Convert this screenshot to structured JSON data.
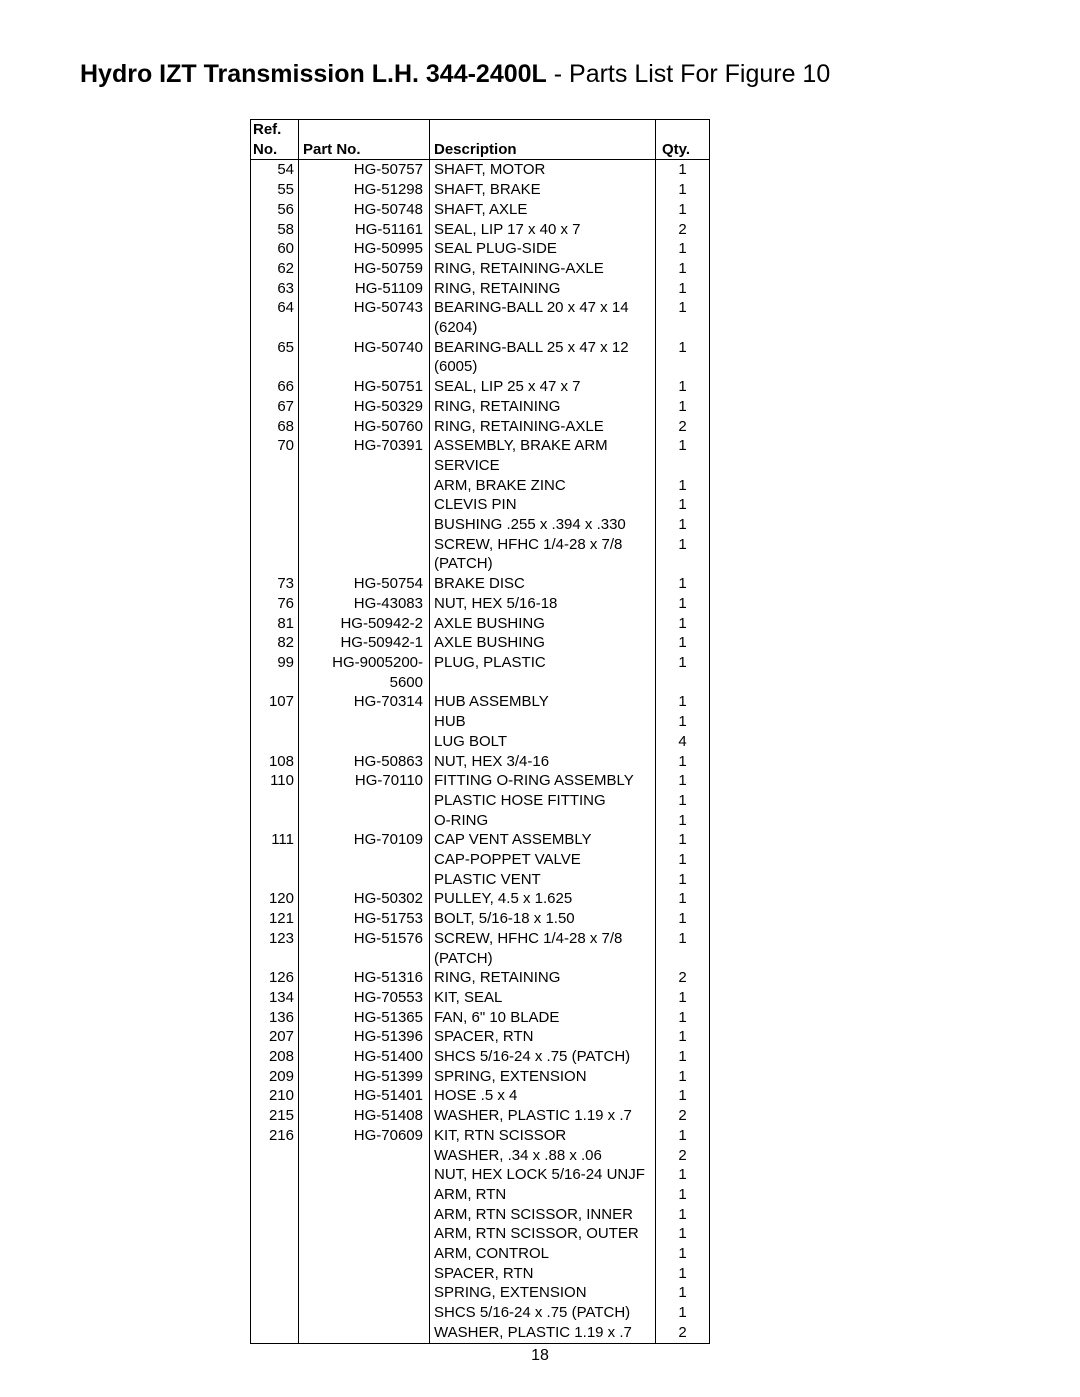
{
  "title": {
    "bold_part": "Hydro IZT Transmission L.H. 344-2400L",
    "rest": " - Parts List For Figure 10"
  },
  "headers": {
    "ref_line1": "Ref.",
    "ref_line2": "No.",
    "part": "Part No.",
    "desc": "Description",
    "qty": "Qty."
  },
  "rows": [
    {
      "ref": "54",
      "part": "HG-50757",
      "desc": "SHAFT, MOTOR",
      "qty": "1"
    },
    {
      "ref": "55",
      "part": "HG-51298",
      "desc": "SHAFT, BRAKE",
      "qty": "1"
    },
    {
      "ref": "56",
      "part": "HG-50748",
      "desc": "SHAFT, AXLE",
      "qty": "1"
    },
    {
      "ref": "58",
      "part": "HG-51161",
      "desc": "SEAL, LIP 17 x 40 x 7",
      "qty": "2"
    },
    {
      "ref": "60",
      "part": "HG-50995",
      "desc": "SEAL PLUG-SIDE",
      "qty": "1"
    },
    {
      "ref": "62",
      "part": "HG-50759",
      "desc": "RING, RETAINING-AXLE",
      "qty": "1"
    },
    {
      "ref": "63",
      "part": "HG-51109",
      "desc": "RING, RETAINING",
      "qty": "1"
    },
    {
      "ref": "64",
      "part": "HG-50743",
      "desc": "BEARING-BALL 20 x 47 x 14 (6204)",
      "qty": "1"
    },
    {
      "ref": "65",
      "part": "HG-50740",
      "desc": "BEARING-BALL 25 x 47 x 12 (6005)",
      "qty": "1"
    },
    {
      "ref": "66",
      "part": "HG-50751",
      "desc": "SEAL, LIP 25 x 47 x 7",
      "qty": "1"
    },
    {
      "ref": "67",
      "part": "HG-50329",
      "desc": "RING, RETAINING",
      "qty": "1"
    },
    {
      "ref": "68",
      "part": "HG-50760",
      "desc": "RING, RETAINING-AXLE",
      "qty": "2"
    },
    {
      "ref": "70",
      "part": "HG-70391",
      "desc": "ASSEMBLY, BRAKE ARM SERVICE",
      "qty": "1"
    },
    {
      "ref": "",
      "part": "",
      "desc": "ARM, BRAKE ZINC",
      "qty": "1"
    },
    {
      "ref": "",
      "part": "",
      "desc": "CLEVIS PIN",
      "qty": "1"
    },
    {
      "ref": "",
      "part": "",
      "desc": "BUSHING .255 x .394 x .330",
      "qty": "1"
    },
    {
      "ref": "",
      "part": "",
      "desc": "SCREW, HFHC 1/4-28 x 7/8 (PATCH)",
      "qty": "1"
    },
    {
      "ref": "73",
      "part": "HG-50754",
      "desc": "BRAKE DISC",
      "qty": "1"
    },
    {
      "ref": "76",
      "part": "HG-43083",
      "desc": "NUT, HEX 5/16-18",
      "qty": "1"
    },
    {
      "ref": "81",
      "part": "HG-50942-2",
      "desc": "AXLE BUSHING",
      "qty": "1"
    },
    {
      "ref": "82",
      "part": "HG-50942-1",
      "desc": "AXLE BUSHING",
      "qty": "1"
    },
    {
      "ref": "99",
      "part": "HG-9005200-5600",
      "desc": "PLUG, PLASTIC",
      "qty": "1"
    },
    {
      "ref": "107",
      "part": "HG-70314",
      "desc": "HUB ASSEMBLY",
      "qty": "1"
    },
    {
      "ref": "",
      "part": "",
      "desc": "HUB",
      "qty": "1"
    },
    {
      "ref": "",
      "part": "",
      "desc": "LUG BOLT",
      "qty": "4"
    },
    {
      "ref": "108",
      "part": "HG-50863",
      "desc": "NUT, HEX 3/4-16",
      "qty": "1"
    },
    {
      "ref": "110",
      "part": "HG-70110",
      "desc": "FITTING O-RING ASSEMBLY",
      "qty": "1"
    },
    {
      "ref": "",
      "part": "",
      "desc": "PLASTIC HOSE FITTING",
      "qty": "1"
    },
    {
      "ref": "",
      "part": "",
      "desc": "O-RING",
      "qty": "1"
    },
    {
      "ref": "111",
      "part": "HG-70109",
      "desc": "CAP VENT ASSEMBLY",
      "qty": "1"
    },
    {
      "ref": "",
      "part": "",
      "desc": "CAP-POPPET VALVE",
      "qty": "1"
    },
    {
      "ref": "",
      "part": "",
      "desc": "PLASTIC VENT",
      "qty": "1"
    },
    {
      "ref": "120",
      "part": "HG-50302",
      "desc": "PULLEY, 4.5 x 1.625",
      "qty": "1"
    },
    {
      "ref": "121",
      "part": "HG-51753",
      "desc": "BOLT, 5/16-18 x 1.50",
      "qty": "1"
    },
    {
      "ref": "123",
      "part": "HG-51576",
      "desc": "SCREW, HFHC 1/4-28 x 7/8 (PATCH)",
      "qty": "1"
    },
    {
      "ref": "126",
      "part": "HG-51316",
      "desc": "RING, RETAINING",
      "qty": "2"
    },
    {
      "ref": "134",
      "part": "HG-70553",
      "desc": "KIT, SEAL",
      "qty": "1"
    },
    {
      "ref": "136",
      "part": "HG-51365",
      "desc": "FAN, 6\" 10 BLADE",
      "qty": "1"
    },
    {
      "ref": "207",
      "part": "HG-51396",
      "desc": "SPACER, RTN",
      "qty": "1"
    },
    {
      "ref": "208",
      "part": "HG-51400",
      "desc": "SHCS 5/16-24 x .75 (PATCH)",
      "qty": "1"
    },
    {
      "ref": "209",
      "part": "HG-51399",
      "desc": "SPRING, EXTENSION",
      "qty": "1"
    },
    {
      "ref": "210",
      "part": "HG-51401",
      "desc": "HOSE .5 x 4",
      "qty": "1"
    },
    {
      "ref": "215",
      "part": "HG-51408",
      "desc": "WASHER, PLASTIC 1.19 x .7",
      "qty": "2"
    },
    {
      "ref": "216",
      "part": "HG-70609",
      "desc": "KIT, RTN SCISSOR",
      "qty": "1"
    },
    {
      "ref": "",
      "part": "",
      "desc": "WASHER, .34 x .88 x .06",
      "qty": "2"
    },
    {
      "ref": "",
      "part": "",
      "desc": "NUT, HEX LOCK 5/16-24 UNJF",
      "qty": "1"
    },
    {
      "ref": "",
      "part": "",
      "desc": "ARM, RTN",
      "qty": "1"
    },
    {
      "ref": "",
      "part": "",
      "desc": "ARM, RTN SCISSOR, INNER",
      "qty": "1"
    },
    {
      "ref": "",
      "part": "",
      "desc": "ARM, RTN SCISSOR, OUTER",
      "qty": "1"
    },
    {
      "ref": "",
      "part": "",
      "desc": "ARM, CONTROL",
      "qty": "1"
    },
    {
      "ref": "",
      "part": "",
      "desc": "SPACER, RTN",
      "qty": "1"
    },
    {
      "ref": "",
      "part": "",
      "desc": "SPRING, EXTENSION",
      "qty": "1"
    },
    {
      "ref": "",
      "part": "",
      "desc": "SHCS 5/16-24 x .75 (PATCH)",
      "qty": "1"
    },
    {
      "ref": "",
      "part": "",
      "desc": "WASHER, PLASTIC 1.19 x .7",
      "qty": "2"
    }
  ],
  "page_number": "18"
}
